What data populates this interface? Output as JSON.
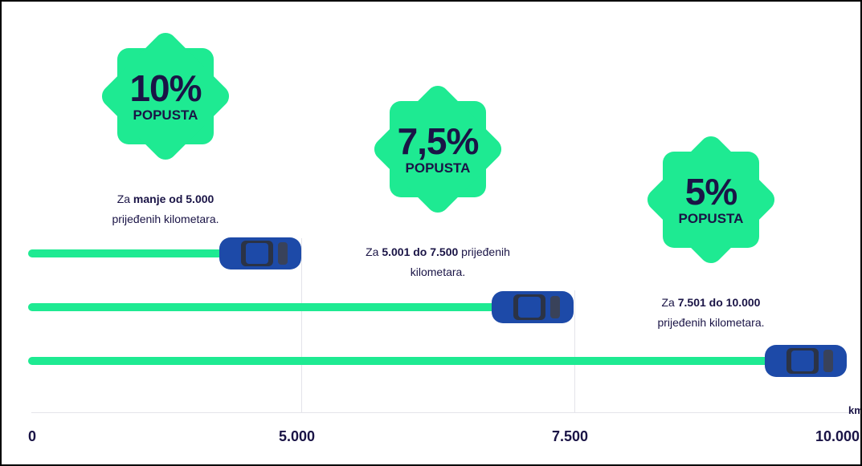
{
  "tiers": [
    {
      "discount": "10%",
      "label": "POPUSTA",
      "prefix": "Za",
      "bold": "manje od 5.000",
      "suffix": "prijeđenih kilometara."
    },
    {
      "discount": "7,5%",
      "label": "POPUSTA",
      "prefix": "Za",
      "bold": "5.001 do 7.500",
      "suffix": "prijeđenih kilometara."
    },
    {
      "discount": "5%",
      "label": "POPUSTA",
      "prefix": "Za",
      "bold": "7.501 do 10.000",
      "suffix": "prijeđenih kilometara."
    }
  ],
  "axis": {
    "labels": [
      "0",
      "5.000",
      "7.500",
      "10.000"
    ],
    "unit": "km"
  }
}
